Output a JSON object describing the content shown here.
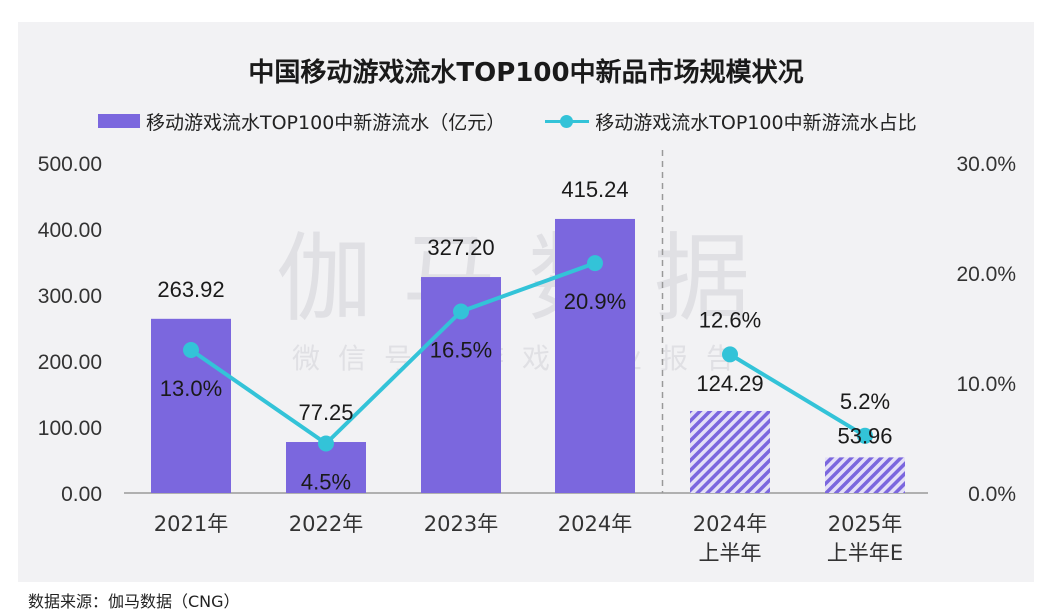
{
  "source": "数据来源：伽马数据（CNG）",
  "watermark": {
    "main": "伽马数据",
    "sub": "微信号：游戏产业报告"
  },
  "chart_data": {
    "type": "bar",
    "title": "中国移动游戏流水TOP100中新品市场规模状况",
    "categories": [
      [
        "2021年"
      ],
      [
        "2022年"
      ],
      [
        "2023年"
      ],
      [
        "2024年"
      ],
      [
        "2024年",
        "上半年"
      ],
      [
        "2025年",
        "上半年E"
      ]
    ],
    "series": [
      {
        "name": "移动游戏流水TOP100中新游流水（亿元）",
        "kind": "bar",
        "axis": "left",
        "values": [
          263.92,
          77.25,
          327.2,
          415.24,
          124.29,
          53.96
        ],
        "labels": [
          "263.92",
          "77.25",
          "327.20",
          "415.24",
          "124.29",
          "53.96"
        ],
        "pattern": [
          false,
          false,
          false,
          false,
          true,
          true
        ],
        "color": "#7b67de"
      },
      {
        "name": "移动游戏流水TOP100中新游流水占比",
        "kind": "line",
        "axis": "right",
        "values": [
          13.0,
          4.5,
          16.5,
          20.9,
          12.6,
          5.2
        ],
        "labels": [
          "13.0%",
          "4.5%",
          "16.5%",
          "20.9%",
          "12.6%",
          "5.2%"
        ],
        "color": "#33c3d8"
      }
    ],
    "y_left": {
      "min": 0,
      "max": 500,
      "ticks": [
        "0.00",
        "100.00",
        "200.00",
        "300.00",
        "400.00",
        "500.00"
      ]
    },
    "y_right": {
      "min": 0,
      "max": 30,
      "ticks": [
        "0.0%",
        "10.0%",
        "20.0%",
        "30.0%"
      ]
    },
    "divider_after_category": 3,
    "legend_position": "top",
    "grid": false
  }
}
